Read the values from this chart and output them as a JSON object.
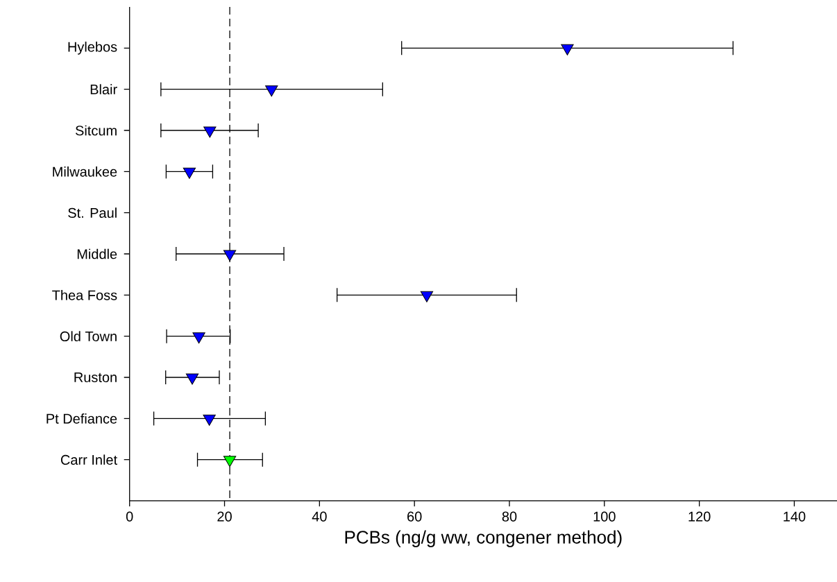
{
  "chart_data": {
    "type": "scatter",
    "orientation": "horizontal",
    "categories": [
      "Hylebos",
      "Blair",
      "Sitcum",
      "Milwaukee",
      "St. Paul",
      "Middle",
      "Thea Foss",
      "Old Town",
      "Ruston",
      "Pt Defiance",
      "Carr Inlet"
    ],
    "values": [
      92.2,
      29.9,
      16.9,
      12.6,
      null,
      21.1,
      62.6,
      14.6,
      13.2,
      16.8,
      21.1
    ],
    "errors": [
      [
        57.3,
        127.1
      ],
      [
        6.6,
        53.3
      ],
      [
        6.6,
        27.1
      ],
      [
        7.7,
        17.5
      ],
      null,
      [
        9.8,
        32.5
      ],
      [
        43.7,
        81.5
      ],
      [
        7.8,
        21.2
      ],
      [
        7.6,
        18.9
      ],
      [
        5.1,
        28.6
      ],
      [
        14.3,
        28.0
      ]
    ],
    "colors": [
      "#0000ff",
      "#0000ff",
      "#0000ff",
      "#0000ff",
      "#0000ff",
      "#0000ff",
      "#0000ff",
      "#0000ff",
      "#0000ff",
      "#0000ff",
      "#00ff00"
    ],
    "marker": "triangle",
    "xlabel": "PCBs (ng/g ww, congener method)",
    "xlim": [
      0,
      149
    ],
    "xticks": [
      0,
      20,
      40,
      60,
      80,
      100,
      120,
      140
    ],
    "ref_lines": [
      {
        "axis": "x",
        "value": 21.1,
        "line_style": "dashed"
      }
    ]
  }
}
